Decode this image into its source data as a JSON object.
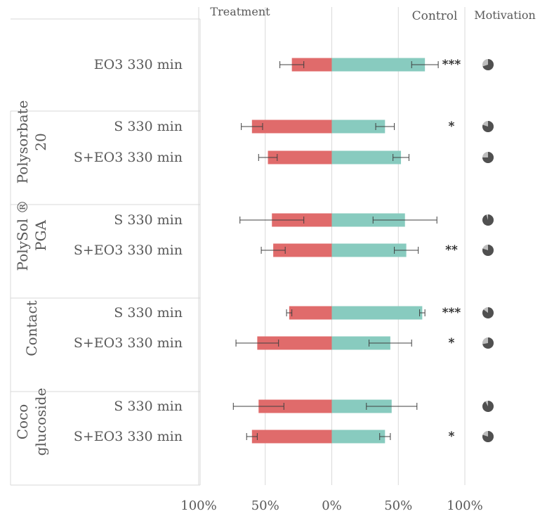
{
  "chart_data": {
    "type": "bar",
    "orientation": "horizontal-diverging",
    "header": {
      "treatment": "Treatment",
      "control": "Control",
      "motivation": "Motivation"
    },
    "axis_ticks": [
      "100%",
      "50%",
      "0%",
      "50%",
      "100%"
    ],
    "xlim": [
      -100,
      100
    ],
    "colors": {
      "treatment": "#e06b6b",
      "control": "#88cbbf",
      "motivation": "#505050",
      "motivation_bg": "#bdbdbd",
      "grid": "#d9d9d9",
      "text": "#595959"
    },
    "groups": [
      {
        "name": [
          ""
        ],
        "rows": [
          {
            "label": "EO3 330 min",
            "treatment": 30,
            "treatment_err": 9,
            "control": 70,
            "control_err": 10,
            "sig": "***",
            "motivation": 0.7
          }
        ]
      },
      {
        "name": [
          "Polysorbate",
          "20"
        ],
        "rows": [
          {
            "label": "S 330 min",
            "treatment": 60,
            "treatment_err": 8,
            "control": 40,
            "control_err": 7,
            "sig": "*",
            "motivation": 0.8
          },
          {
            "label": "S+EO3 330 min",
            "treatment": 48,
            "treatment_err": 7,
            "control": 52,
            "control_err": 6,
            "sig": "",
            "motivation": 0.75
          }
        ]
      },
      {
        "name": [
          "PolySol ®",
          "PGA"
        ],
        "rows": [
          {
            "label": "S 330 min",
            "treatment": 45,
            "treatment_err": 24,
            "control": 55,
            "control_err": 24,
            "sig": "",
            "motivation": 0.95
          },
          {
            "label": "S+EO3 330 min",
            "treatment": 44,
            "treatment_err": 9,
            "control": 56,
            "control_err": 9,
            "sig": "**",
            "motivation": 0.8
          }
        ]
      },
      {
        "name": [
          "Contact"
        ],
        "rows": [
          {
            "label": "S 330 min",
            "treatment": 32,
            "treatment_err": 2,
            "control": 68,
            "control_err": 2,
            "sig": "***",
            "motivation": 0.85
          },
          {
            "label": "S+EO3 330 min",
            "treatment": 56,
            "treatment_err": 16,
            "control": 44,
            "control_err": 16,
            "sig": "*",
            "motivation": 0.72
          }
        ]
      },
      {
        "name": [
          "Coco",
          "glucoside"
        ],
        "rows": [
          {
            "label": "S 330 min",
            "treatment": 55,
            "treatment_err": 19,
            "control": 45,
            "control_err": 19,
            "sig": "",
            "motivation": 0.92
          },
          {
            "label": "S+EO3 330 min",
            "treatment": 60,
            "treatment_err": 4,
            "control": 40,
            "control_err": 4,
            "sig": "*",
            "motivation": 0.8
          }
        ]
      }
    ]
  }
}
